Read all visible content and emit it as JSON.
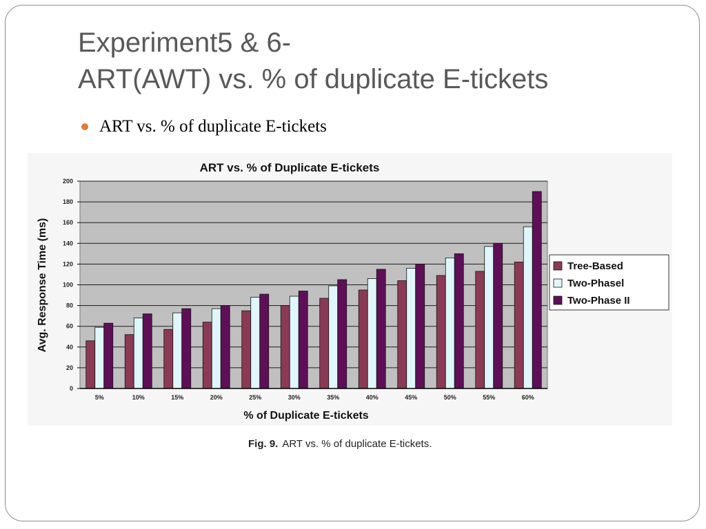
{
  "slide": {
    "title_line1": "Experiment5 & 6-",
    "title_line2": "ART(AWT) vs. % of duplicate E-tickets",
    "bullet": "ART vs. % of duplicate E-tickets"
  },
  "caption": {
    "label": "Fig. 9.",
    "text": "ART vs. % of duplicate E-tickets."
  },
  "colors": {
    "tree_based": "#8b3a55",
    "two_phase_1": "#dff6fa",
    "two_phase_2": "#5e0f57",
    "plot_bg": "#c0c0c0",
    "bullet": "#e07b3c"
  },
  "chart_data": {
    "type": "bar",
    "title": "ART vs. % of Duplicate E-tickets",
    "xlabel": "% of Duplicate E-tickets",
    "ylabel": "Avg. Response Time (ms)",
    "ylim": [
      0,
      200
    ],
    "yticks": [
      0,
      20,
      40,
      60,
      80,
      100,
      120,
      140,
      160,
      180,
      200
    ],
    "grid": true,
    "legend_position": "right",
    "categories": [
      "5%",
      "10%",
      "15%",
      "20%",
      "25%",
      "30%",
      "35%",
      "40%",
      "45%",
      "50%",
      "55%",
      "60%"
    ],
    "series": [
      {
        "name": "Tree-Based",
        "color": "#8b3a55",
        "values": [
          46,
          52,
          57,
          64,
          75,
          80,
          87,
          95,
          104,
          109,
          113,
          122
        ]
      },
      {
        "name": "Two-Phasel",
        "color": "#dff6fa",
        "values": [
          59,
          68,
          73,
          77,
          88,
          89,
          99,
          106,
          116,
          126,
          137,
          156
        ]
      },
      {
        "name": "Two-Phase II",
        "color": "#5e0f57",
        "values": [
          63,
          72,
          77,
          80,
          91,
          94,
          105,
          115,
          120,
          130,
          140,
          190
        ]
      }
    ]
  }
}
